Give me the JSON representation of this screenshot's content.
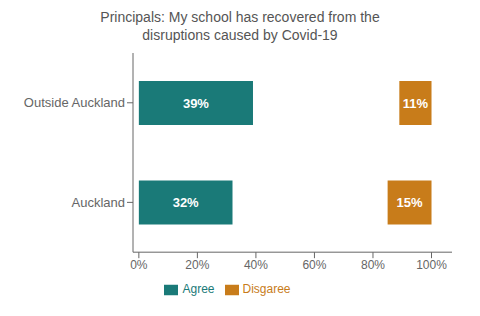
{
  "chart_data": {
    "type": "bar",
    "orientation": "horizontal",
    "title": "Principals: My school has recovered from the\ndisruptions caused by Covid-19",
    "categories": [
      "Outside Auckland",
      "Auckland"
    ],
    "series": [
      {
        "name": "Agree",
        "color": "#1a7a78",
        "values": [
          39,
          32
        ],
        "value_labels": [
          "39%",
          "32%"
        ]
      },
      {
        "name": "Disgaree",
        "color": "#c87c1a",
        "values": [
          11,
          15
        ],
        "starts": [
          89,
          85
        ],
        "value_labels": [
          "11%",
          "15%"
        ]
      }
    ],
    "xlim": [
      -2,
      107
    ],
    "xticks": [
      {
        "value": 0,
        "label": "0%"
      },
      {
        "value": 20,
        "label": "20%"
      },
      {
        "value": 40,
        "label": "40%"
      },
      {
        "value": 60,
        "label": "60%"
      },
      {
        "value": 80,
        "label": "80%"
      },
      {
        "value": 100,
        "label": "100%"
      }
    ],
    "data_labels": true,
    "legend": "bottom",
    "grid": false
  }
}
